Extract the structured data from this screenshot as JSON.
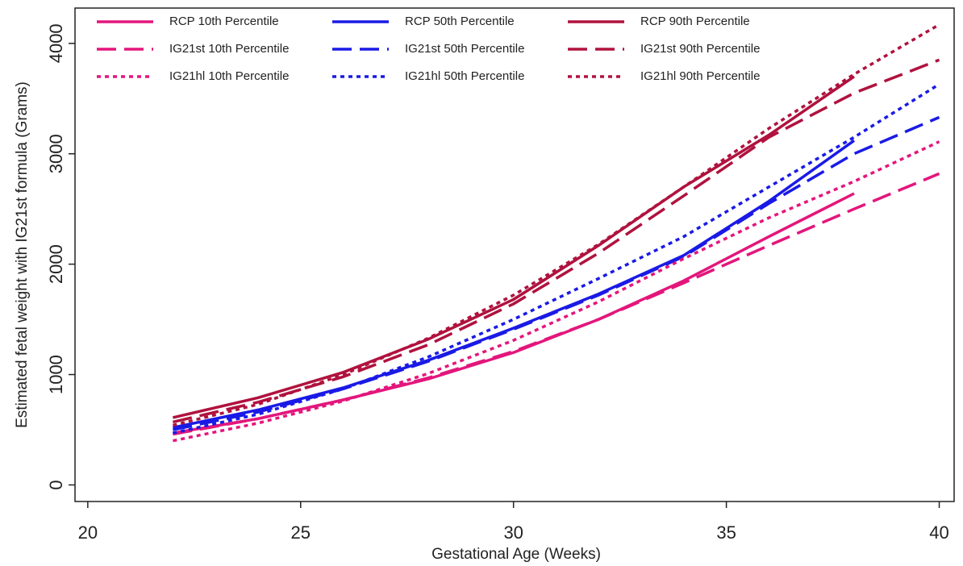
{
  "chart_data": {
    "type": "line",
    "xlabel": "Gestational Age (Weeks)",
    "ylabel": "Estimated fetal weight with IG21st formula (Grams)",
    "x": [
      22,
      24,
      26,
      28,
      30,
      32,
      34,
      36,
      38,
      40
    ],
    "xlim": [
      19.7,
      40.35
    ],
    "xticks": [
      20,
      25,
      30,
      35,
      40
    ],
    "ylim": [
      -150,
      4320
    ],
    "yticks": [
      0,
      1000,
      2000,
      3000,
      4000
    ],
    "series": [
      {
        "name": "RCP 10th Percentile",
        "color": "#e3167c",
        "dash": "solid",
        "values": [
          470,
          600,
          770,
          960,
          1200,
          1500,
          1850,
          2250,
          2640,
          null
        ]
      },
      {
        "name": "RCP 50th Percentile",
        "color": "#1a1ae6",
        "dash": "solid",
        "values": [
          520,
          680,
          880,
          1130,
          1420,
          1730,
          2080,
          2570,
          3120,
          null
        ]
      },
      {
        "name": "RCP 90th Percentile",
        "color": "#b0123e",
        "dash": "solid",
        "values": [
          610,
          790,
          1020,
          1320,
          1680,
          2170,
          2700,
          3170,
          3700,
          null
        ]
      },
      {
        "name": "IG21st 10th Percentile",
        "color": "#e3167c",
        "dash": "dashed",
        "values": [
          460,
          600,
          770,
          970,
          1210,
          1500,
          1830,
          2170,
          2500,
          2820
        ]
      },
      {
        "name": "IG21st 50th Percentile",
        "color": "#1a1ae6",
        "dash": "dashed",
        "values": [
          500,
          660,
          870,
          1120,
          1410,
          1720,
          2070,
          2550,
          3000,
          3330
        ]
      },
      {
        "name": "IG21st 90th Percentile",
        "color": "#b0123e",
        "dash": "dashed",
        "values": [
          570,
          750,
          980,
          1270,
          1640,
          2100,
          2620,
          3150,
          3550,
          3850
        ]
      },
      {
        "name": "IG21hl 10th Percentile",
        "color": "#e3167c",
        "dash": "dotted",
        "values": [
          400,
          560,
          760,
          1010,
          1310,
          1660,
          2050,
          2420,
          2750,
          3110
        ]
      },
      {
        "name": "IG21hl 50th Percentile",
        "color": "#1a1ae6",
        "dash": "dotted",
        "values": [
          470,
          640,
          870,
          1160,
          1500,
          1870,
          2250,
          2700,
          3150,
          3630
        ]
      },
      {
        "name": "IG21hl 90th Percentile",
        "color": "#b0123e",
        "dash": "dotted",
        "values": [
          540,
          730,
          1000,
          1330,
          1720,
          2180,
          2700,
          3230,
          3720,
          4170
        ]
      }
    ]
  }
}
